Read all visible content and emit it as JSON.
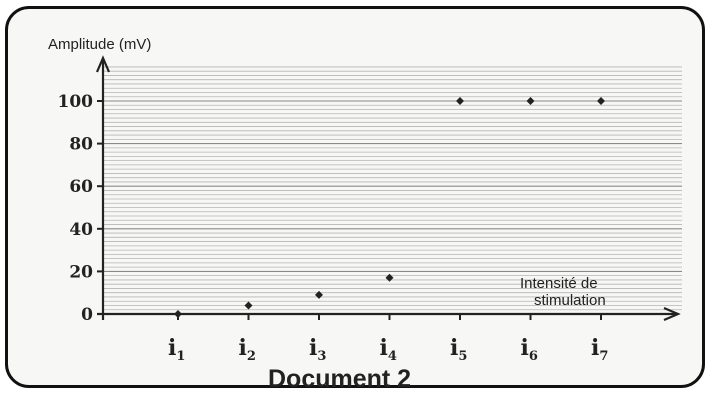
{
  "chart_data": {
    "type": "scatter",
    "ylabel": "Amplitude (mV)",
    "xlabel_line1": "Intensité de",
    "xlabel_line2": "stimulation",
    "caption": "Document 2",
    "categories": [
      {
        "base": "i",
        "sub": "1"
      },
      {
        "base": "i",
        "sub": "2"
      },
      {
        "base": "i",
        "sub": "3"
      },
      {
        "base": "i",
        "sub": "4"
      },
      {
        "base": "i",
        "sub": "5"
      },
      {
        "base": "i",
        "sub": "6"
      },
      {
        "base": "i",
        "sub": "7"
      }
    ],
    "values": [
      0,
      4,
      9,
      17,
      100,
      100,
      100
    ],
    "yticks": [
      "0",
      "20",
      "40",
      "60",
      "80",
      "100"
    ],
    "ylim": [
      0,
      110
    ],
    "grid": true
  }
}
